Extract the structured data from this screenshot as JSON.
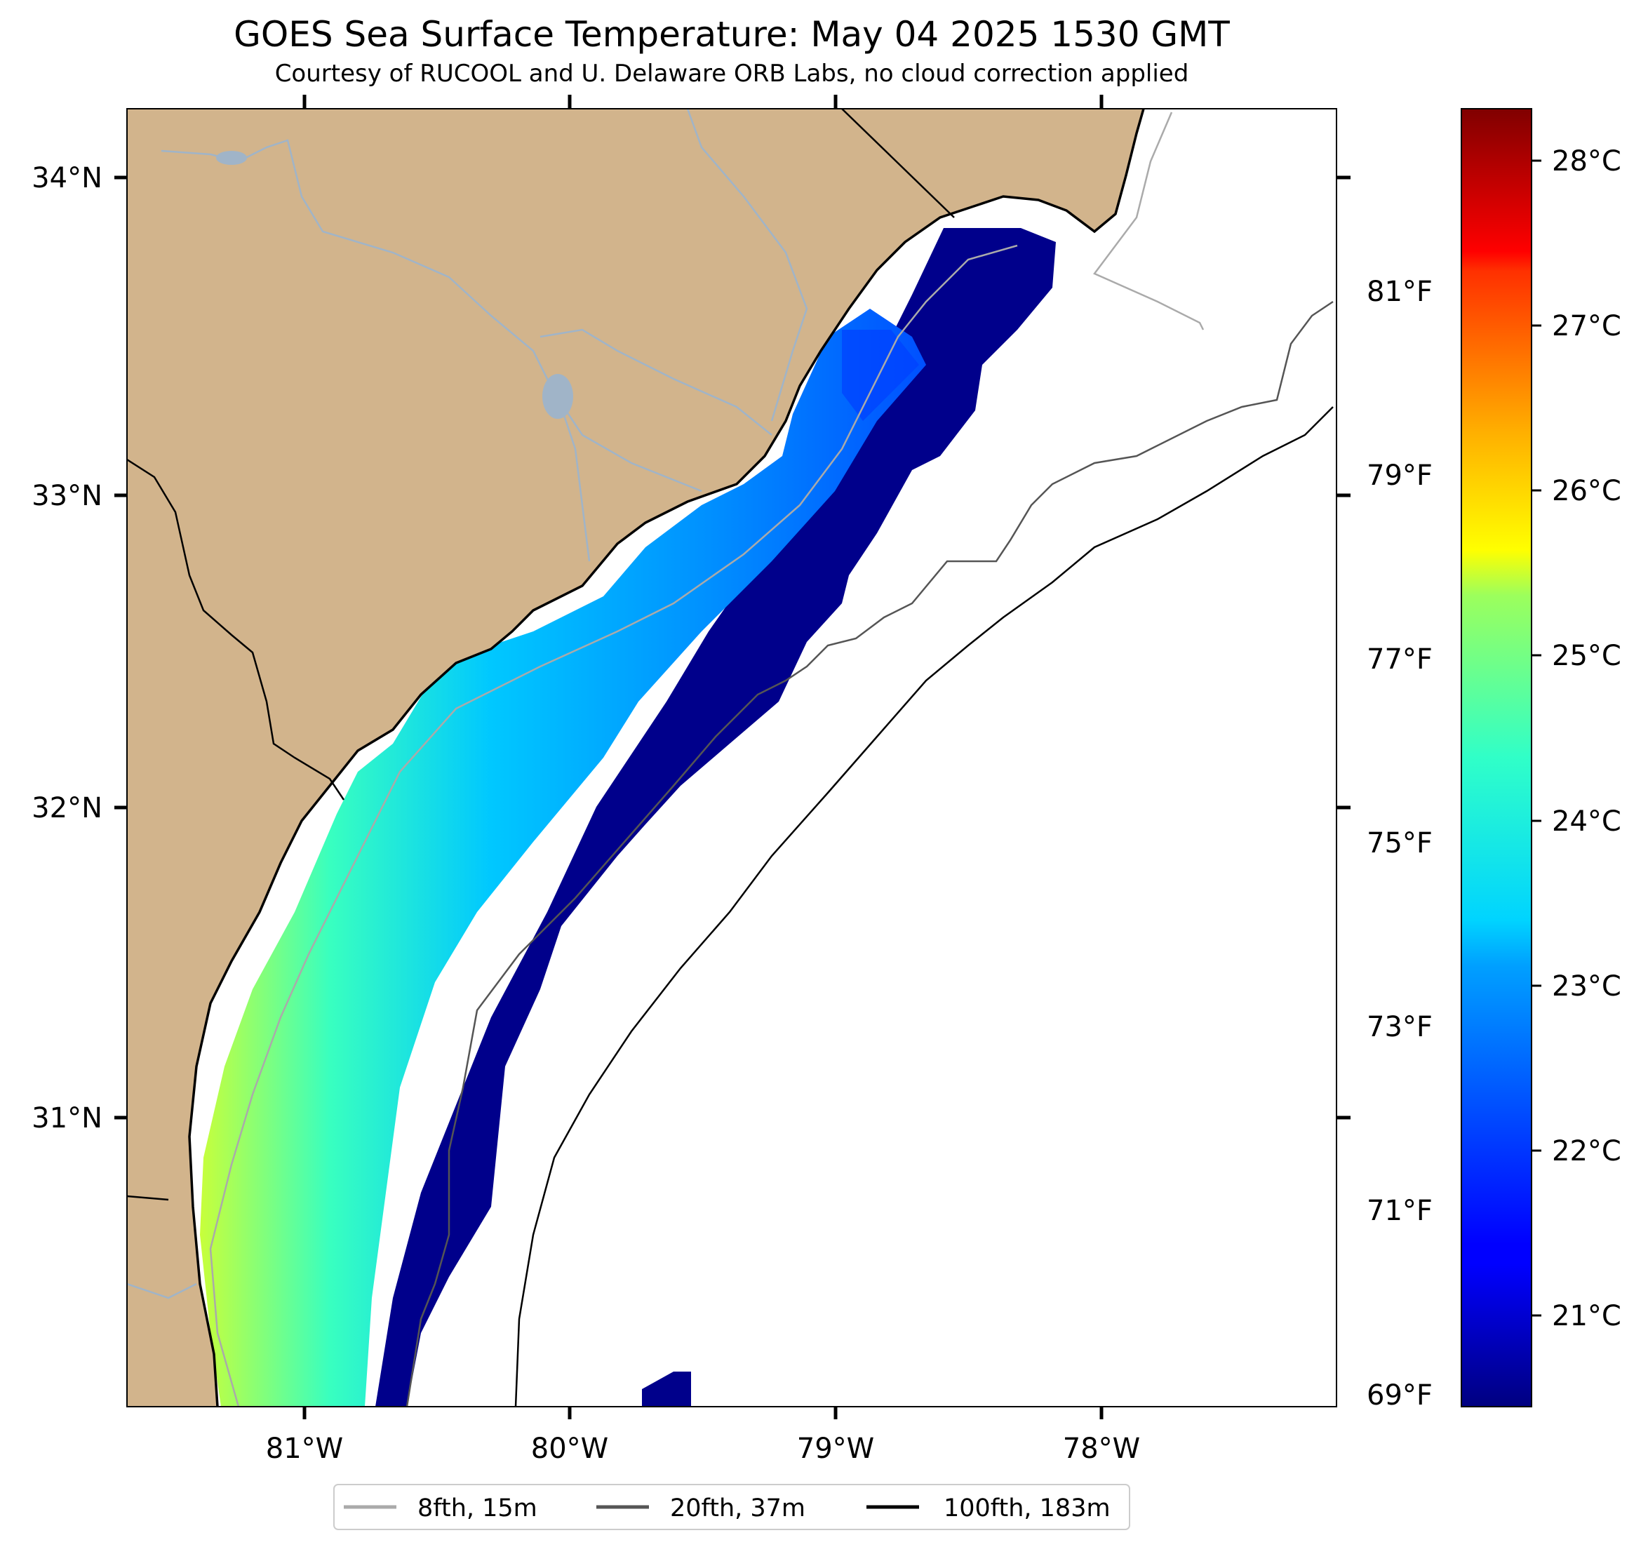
{
  "title": "GOES Sea Surface Temperature: May 04 2025 1530 GMT",
  "subtitle": "Courtesy of RUCOOL and U. Delaware ORB Labs, no cloud correction applied",
  "map": {
    "lon_range": [
      -81.67,
      -77.12
    ],
    "lat_range": [
      30.09,
      34.22
    ],
    "x_ticks": [
      "81°W",
      "80°W",
      "79°W",
      "78°W"
    ],
    "y_ticks": [
      "34°N",
      "33°N",
      "32°N",
      "31°N"
    ],
    "land_color": "#d2b48c",
    "ocean_color": "#ffffff",
    "river_color": "#a0b4c8"
  },
  "colorbar": {
    "colormap": "jet",
    "celsius_ticks": [
      "28°C",
      "27°C",
      "26°C",
      "25°C",
      "24°C",
      "23°C",
      "22°C",
      "21°C"
    ],
    "fahrenheit_ticks": [
      "81°F",
      "79°F",
      "77°F",
      "75°F",
      "73°F",
      "71°F",
      "69°F"
    ],
    "range_celsius": [
      20.5,
      28.3
    ]
  },
  "legend": [
    {
      "label": "8fth, 15m",
      "color": "#aaaaaa"
    },
    {
      "label": "20fth, 37m",
      "color": "#555555"
    },
    {
      "label": "100fth, 183m",
      "color": "#000000"
    }
  ]
}
